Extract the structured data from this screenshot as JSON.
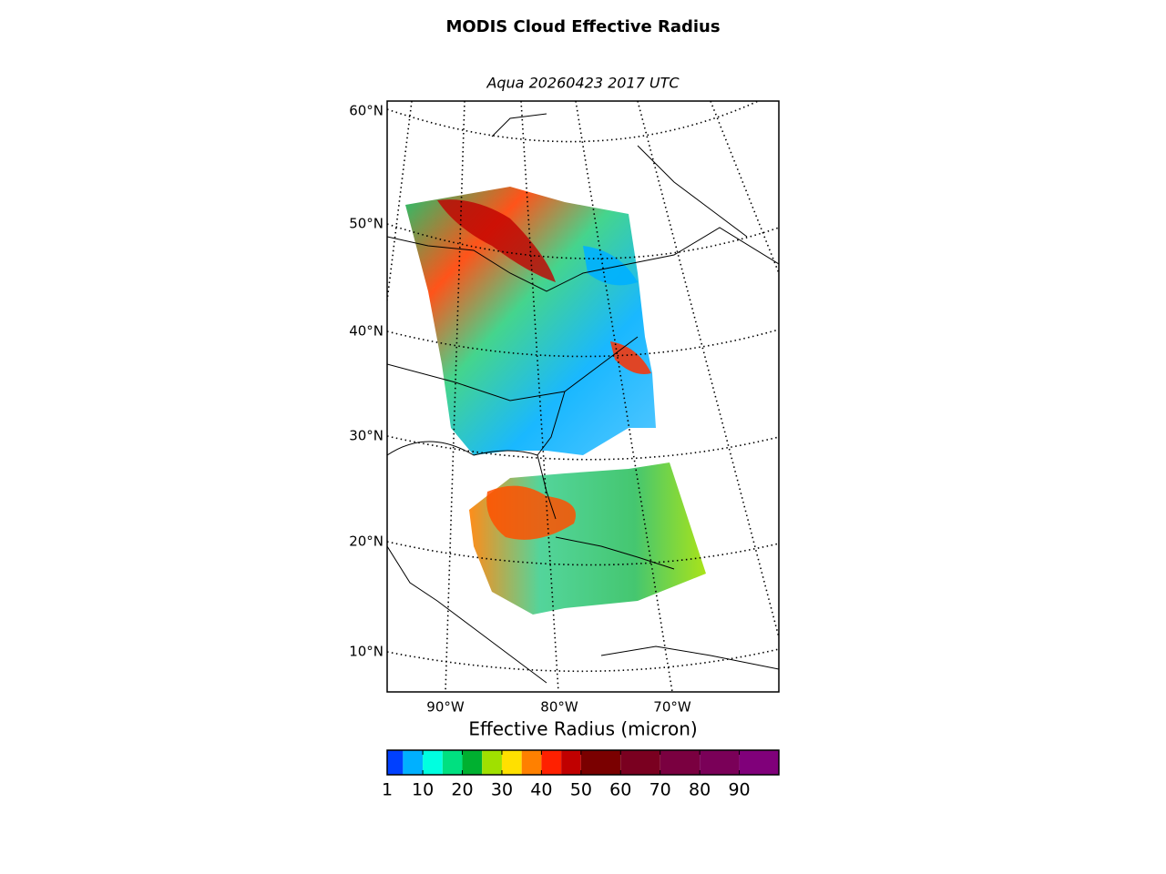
{
  "title": "MODIS Cloud Effective Radius",
  "subtitle": "Aqua 20260423 2017 UTC",
  "map": {
    "lat_labels": [
      "60°N",
      "50°N",
      "40°N",
      "30°N",
      "20°N",
      "10°N"
    ],
    "lon_labels": [
      "90°W",
      "80°W",
      "70°W"
    ]
  },
  "colorbar": {
    "label": "Effective Radius (micron)",
    "lim": [
      1,
      100
    ],
    "ticks": [
      1,
      10,
      20,
      30,
      40,
      50,
      60,
      70,
      80,
      90
    ],
    "bounds": [
      1,
      5,
      10,
      15,
      20,
      25,
      30,
      35,
      40,
      45,
      50,
      60,
      70,
      80,
      90,
      100
    ],
    "colors": [
      "#0040ff",
      "#00b0ff",
      "#00ffe0",
      "#00e080",
      "#00b030",
      "#a0e000",
      "#ffe000",
      "#ff8000",
      "#ff2000",
      "#c00000",
      "#7a0000",
      "#7a0020",
      "#7a0040",
      "#7a0058",
      "#80007a"
    ]
  }
}
